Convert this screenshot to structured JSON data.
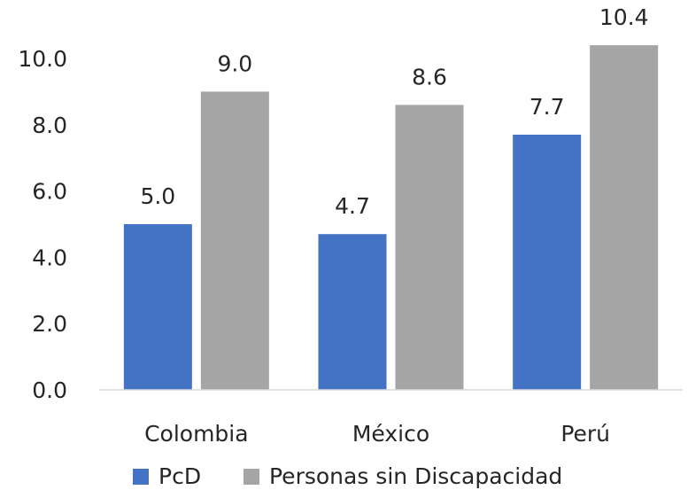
{
  "chart_data": {
    "type": "bar",
    "categories": [
      "Colombia",
      "México",
      "Perú"
    ],
    "series": [
      {
        "name": "PcD",
        "values": [
          5.0,
          4.7,
          7.7
        ],
        "color": "#4472C4"
      },
      {
        "name": "Personas sin Discapacidad",
        "values": [
          9.0,
          8.6,
          10.4
        ],
        "color": "#A5A5A5"
      }
    ],
    "data_labels": [
      [
        "5.0",
        "4.7",
        "7.7"
      ],
      [
        "9.0",
        "8.6",
        "10.4"
      ]
    ],
    "yticks": [
      "0.0",
      "2.0",
      "4.0",
      "6.0",
      "8.0",
      "10.0"
    ],
    "ylim": [
      0,
      10
    ],
    "grid": false,
    "legend_position": "bottom",
    "axis_color": "#D9D9D9"
  }
}
